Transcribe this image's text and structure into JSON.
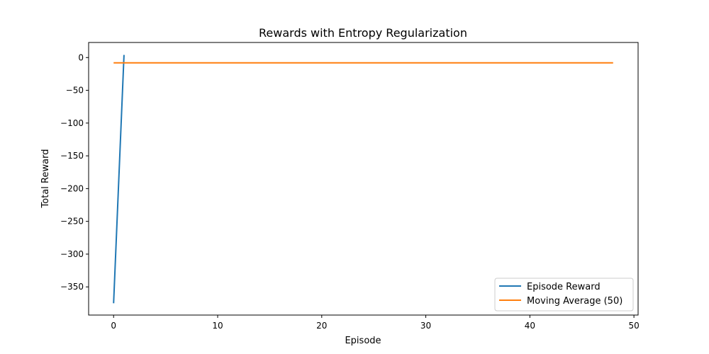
{
  "chart_data": {
    "type": "line",
    "title": "Rewards with Entropy Regularization",
    "xlabel": "Episode",
    "ylabel": "Total Reward",
    "xlim": [
      -2.4,
      50.4
    ],
    "ylim": [
      -393,
      23
    ],
    "xticks": [
      0,
      10,
      20,
      30,
      40,
      50
    ],
    "yticks": [
      0,
      -50,
      -100,
      -150,
      -200,
      -250,
      -300,
      -350
    ],
    "xtick_labels": [
      "0",
      "10",
      "20",
      "30",
      "40",
      "50"
    ],
    "ytick_labels": [
      "0",
      "−50",
      "−100",
      "−150",
      "−200",
      "−250",
      "−300",
      "−350"
    ],
    "grid": false,
    "legend_position": "lower-right",
    "series": [
      {
        "name": "Episode Reward",
        "color": "#1f77b4",
        "x": [
          0,
          1
        ],
        "y": [
          -375,
          4
        ]
      },
      {
        "name": "Moving Average (50)",
        "color": "#ff7f0e",
        "x": [
          0,
          48
        ],
        "y": [
          -8,
          -8
        ]
      }
    ]
  }
}
